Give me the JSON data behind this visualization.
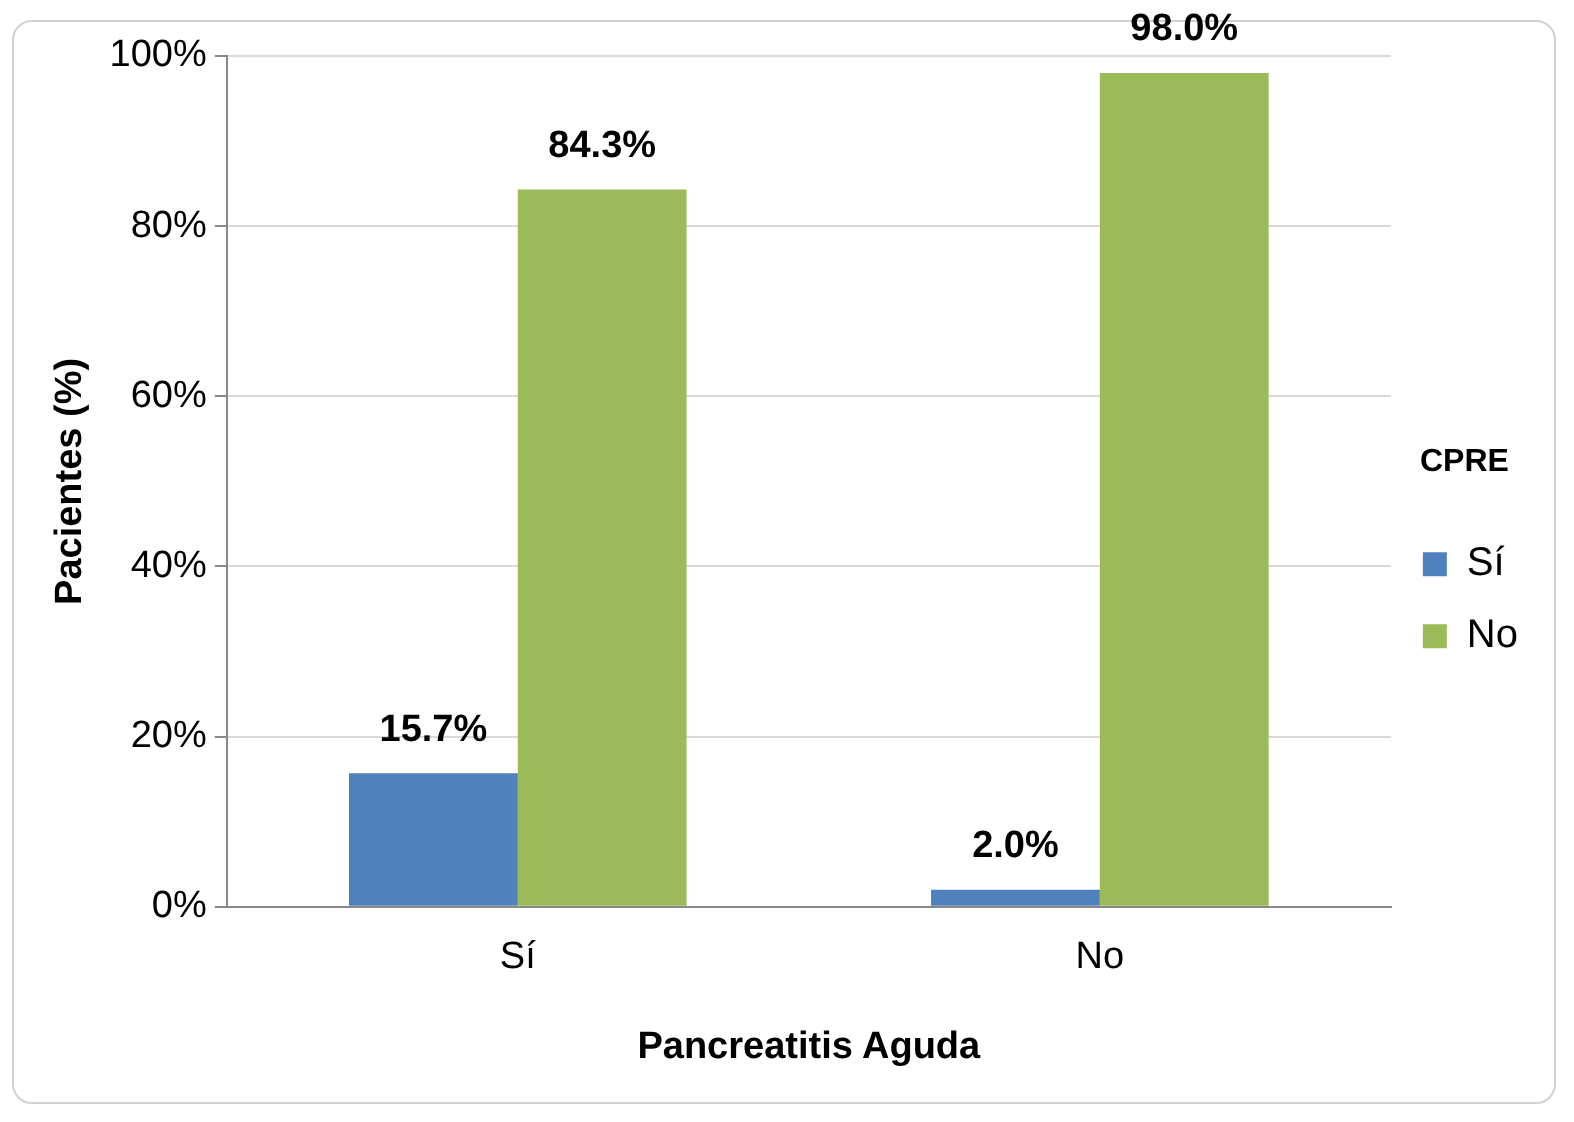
{
  "chart_data": {
    "type": "bar",
    "xlabel": "Pancreatitis Aguda",
    "ylabel": "Pacientes (%)",
    "legend_title": "CPRE",
    "categories": [
      "Sí",
      "No"
    ],
    "series": [
      {
        "name": "Sí",
        "color": "#4f81bd",
        "values": [
          15.7,
          2.0
        ],
        "value_labels": [
          "15.7%",
          "2.0%"
        ]
      },
      {
        "name": "No",
        "color": "#9bbb59",
        "values": [
          84.3,
          98.0
        ],
        "value_labels": [
          "84.3%",
          "98.0%"
        ]
      }
    ],
    "ylim": [
      0,
      100
    ],
    "yticks": [
      {
        "value": 0,
        "label": "0%"
      },
      {
        "value": 20,
        "label": "20%"
      },
      {
        "value": 40,
        "label": "40%"
      },
      {
        "value": 60,
        "label": "60%"
      },
      {
        "value": 80,
        "label": "80%"
      },
      {
        "value": 100,
        "label": "100%"
      }
    ],
    "grid": "y",
    "legend": "right"
  }
}
